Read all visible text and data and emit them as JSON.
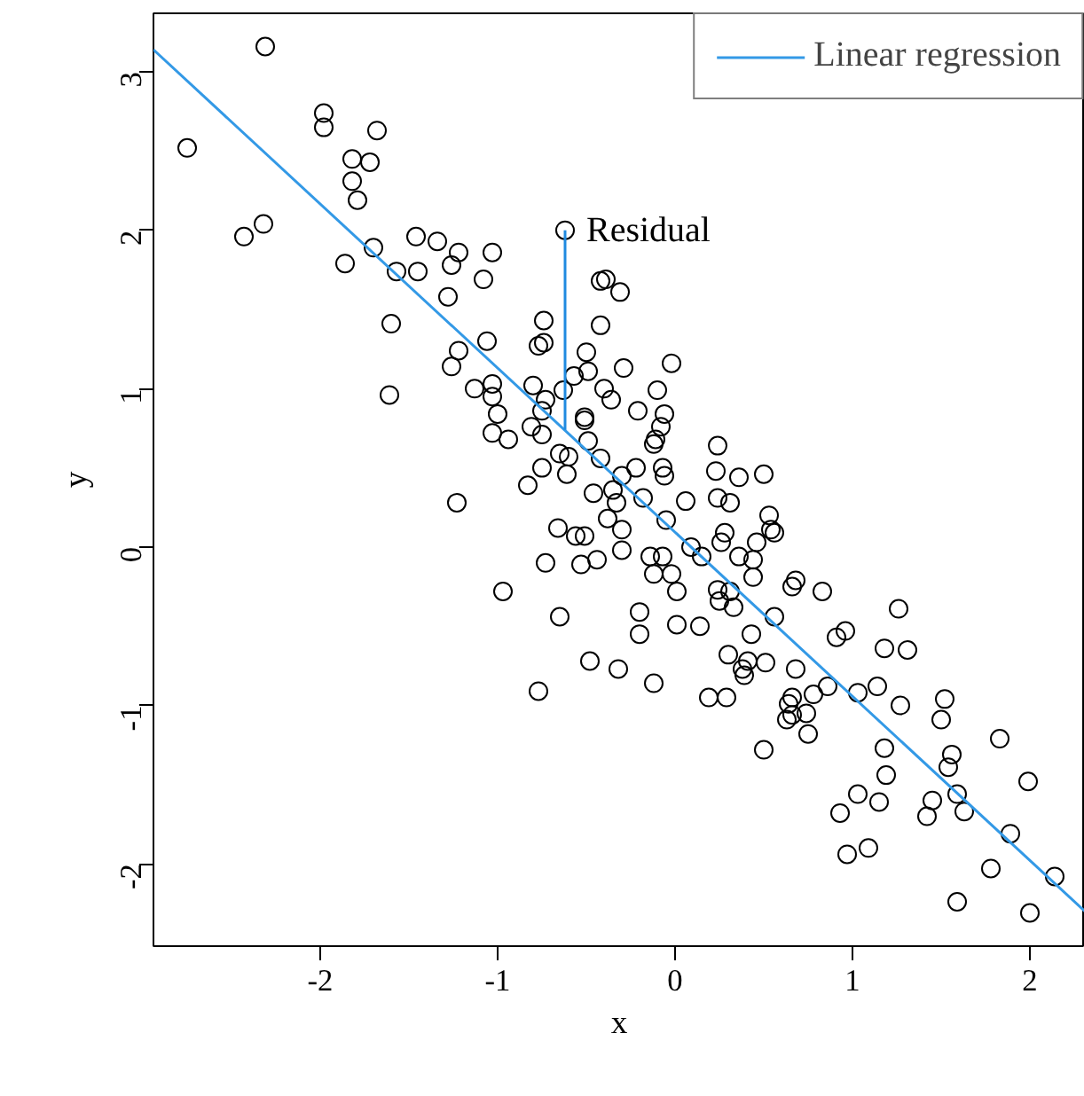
{
  "chart_data": {
    "type": "scatter",
    "xlabel": "x",
    "ylabel": "y",
    "xlim": [
      -2.94,
      2.31
    ],
    "ylim": [
      -2.52,
      3.37
    ],
    "xticks": [
      -2,
      -1,
      0,
      1,
      2
    ],
    "yticks": [
      -2,
      -1,
      0,
      1,
      2,
      3
    ],
    "grid": false,
    "legend": "top right",
    "annotations": [
      {
        "text": "Residual",
        "x": -0.62,
        "y": 2.0
      }
    ],
    "series": [
      {
        "color": "#000000",
        "marker": "circle",
        "x": [
          -2.31,
          -2.75,
          -1.98,
          -1.98,
          -1.68,
          -1.82,
          -1.72,
          -1.82,
          -1.79,
          -2.43,
          -2.32,
          -1.7,
          -1.86,
          -1.46,
          -1.34,
          -1.22,
          -1.26,
          -1.03,
          -1.08,
          -1.45,
          -1.57,
          -1.28,
          -1.6,
          -0.74,
          -0.74,
          -0.77,
          -0.42,
          -1.06,
          -0.5,
          -1.22,
          -1.26,
          -1.13,
          -1.03,
          -1.03,
          -1.0,
          -1.03,
          -0.94,
          -0.8,
          -0.81,
          -0.75,
          -0.63,
          -0.57,
          -0.51,
          -0.49,
          -0.4,
          -0.36,
          -1.61,
          -0.42,
          -0.39,
          -0.62,
          -0.31,
          -0.29,
          -0.02,
          -0.1,
          -0.73,
          -0.21,
          -0.06,
          -0.08,
          -0.11,
          -0.75,
          -0.51,
          -0.49,
          -0.65,
          -0.6,
          -0.75,
          -0.83,
          -0.61,
          -0.42,
          -0.3,
          -0.22,
          -0.07,
          -0.06,
          0.24,
          0.23,
          0.36,
          0.5,
          0.31,
          0.06,
          -0.18,
          -0.46,
          -0.35,
          -0.33,
          -0.38,
          -0.3,
          -0.05,
          0.24,
          -0.66,
          -0.56,
          -0.51,
          -0.44,
          -0.53,
          -0.73,
          -0.3,
          -0.14,
          -0.07,
          -0.12,
          -0.02,
          0.01,
          0.09,
          0.15,
          0.28,
          0.26,
          0.36,
          0.44,
          0.46,
          0.53,
          0.54,
          0.56,
          0.44,
          0.24,
          0.25,
          0.33,
          0.66,
          -1.23,
          -0.97,
          -0.65,
          -0.2,
          -0.48,
          -0.32,
          -0.77,
          -0.12,
          0.68,
          0.83,
          1.26,
          1.18,
          1.31,
          0.96,
          0.91,
          -0.2,
          0.01,
          0.14,
          -0.12,
          0.19,
          0.29,
          0.3,
          0.41,
          0.51,
          0.38,
          0.39,
          0.68,
          0.86,
          0.78,
          0.66,
          0.64,
          0.66,
          0.63,
          0.74,
          0.75,
          0.5,
          1.03,
          1.14,
          1.27,
          1.52,
          1.5,
          1.18,
          1.19,
          1.03,
          1.15,
          0.93,
          0.97,
          1.09,
          1.56,
          1.54,
          1.59,
          1.45,
          1.42,
          1.63,
          1.83,
          1.99,
          1.89,
          1.78,
          1.59,
          2.0,
          2.14,
          0.43,
          0.56,
          0.31
        ],
        "values": [
          3.16,
          2.52,
          2.74,
          2.65,
          2.63,
          2.45,
          2.43,
          2.31,
          2.19,
          1.96,
          2.04,
          1.89,
          1.79,
          1.96,
          1.93,
          1.86,
          1.78,
          1.86,
          1.69,
          1.74,
          1.74,
          1.58,
          1.41,
          1.43,
          1.29,
          1.27,
          1.4,
          1.3,
          1.23,
          1.24,
          1.14,
          1.0,
          1.03,
          0.95,
          0.84,
          0.72,
          0.68,
          1.02,
          0.76,
          0.86,
          0.99,
          1.08,
          0.82,
          1.11,
          1.0,
          0.93,
          0.96,
          1.68,
          1.69,
          2.0,
          1.61,
          1.13,
          1.16,
          0.99,
          0.93,
          0.86,
          0.84,
          0.76,
          0.68,
          0.71,
          0.8,
          0.67,
          0.59,
          0.57,
          0.5,
          0.39,
          0.46,
          0.56,
          0.45,
          0.5,
          0.5,
          0.45,
          0.64,
          0.48,
          0.44,
          0.46,
          0.28,
          0.29,
          0.31,
          0.34,
          0.36,
          0.28,
          0.18,
          0.11,
          0.17,
          0.31,
          0.12,
          0.07,
          0.07,
          -0.08,
          -0.11,
          -0.1,
          -0.02,
          -0.06,
          -0.06,
          -0.17,
          -0.17,
          -0.28,
          0.0,
          -0.06,
          0.09,
          0.03,
          -0.06,
          -0.08,
          0.03,
          0.2,
          0.11,
          0.09,
          -0.19,
          -0.27,
          -0.34,
          -0.38,
          -0.25,
          0.28,
          -0.28,
          -0.44,
          -0.41,
          -0.72,
          -0.77,
          -0.91,
          0.65,
          -0.21,
          -0.28,
          -0.39,
          -0.64,
          -0.65,
          -0.53,
          -0.57,
          -0.55,
          -0.49,
          -0.5,
          -0.86,
          -0.95,
          -0.95,
          -0.68,
          -0.72,
          -0.73,
          -0.77,
          -0.81,
          -0.77,
          -0.88,
          -0.93,
          -0.95,
          -0.99,
          -1.06,
          -1.09,
          -1.05,
          -1.18,
          -1.28,
          -0.92,
          -0.88,
          -1.0,
          -0.96,
          -1.09,
          -1.27,
          -1.44,
          -1.56,
          -1.61,
          -1.68,
          -1.94,
          -1.9,
          -1.31,
          -1.39,
          -1.56,
          -1.6,
          -1.7,
          -1.67,
          -1.21,
          -1.48,
          -1.81,
          -2.03,
          -2.24,
          -2.31,
          -2.08,
          -0.55,
          -0.44,
          -0.28
        ]
      },
      {
        "type": "line",
        "name": "Linear regression",
        "color": "#3399e6",
        "line_style": "solid",
        "marker": "none",
        "x": [
          -2.94,
          2.31
        ],
        "values": [
          3.14,
          -2.3
        ]
      },
      {
        "type": "line",
        "color": "#1f8ae0",
        "line_style": "solid",
        "marker": "none",
        "x": [
          -0.62,
          -0.62
        ],
        "values": [
          2.0,
          0.74
        ]
      }
    ]
  }
}
